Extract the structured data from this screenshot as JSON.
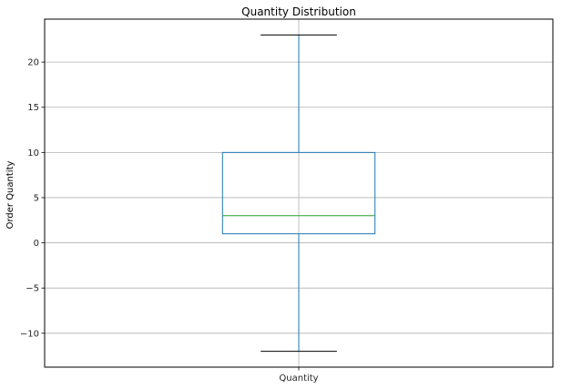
{
  "chart_data": {
    "type": "box",
    "title": "Quantity Distribution",
    "xlabel": "",
    "ylabel": "Order Quantity",
    "categories": [
      "Quantity"
    ],
    "boxes": [
      {
        "category": "Quantity",
        "whisker_low": -12,
        "q1": 1,
        "median": 3,
        "q3": 10,
        "whisker_high": 23
      }
    ],
    "ylim": [
      -13.75,
      24.75
    ],
    "yticks": [
      -10,
      -5,
      0,
      5,
      10,
      15,
      20
    ],
    "ytick_labels": [
      "−10",
      "−5",
      "0",
      "5",
      "10",
      "15",
      "20"
    ],
    "grid": true,
    "colors": {
      "box": "#1f77b4",
      "median": "#2ca02c",
      "grid": "#b0b0b0",
      "axes": "#000000"
    }
  }
}
